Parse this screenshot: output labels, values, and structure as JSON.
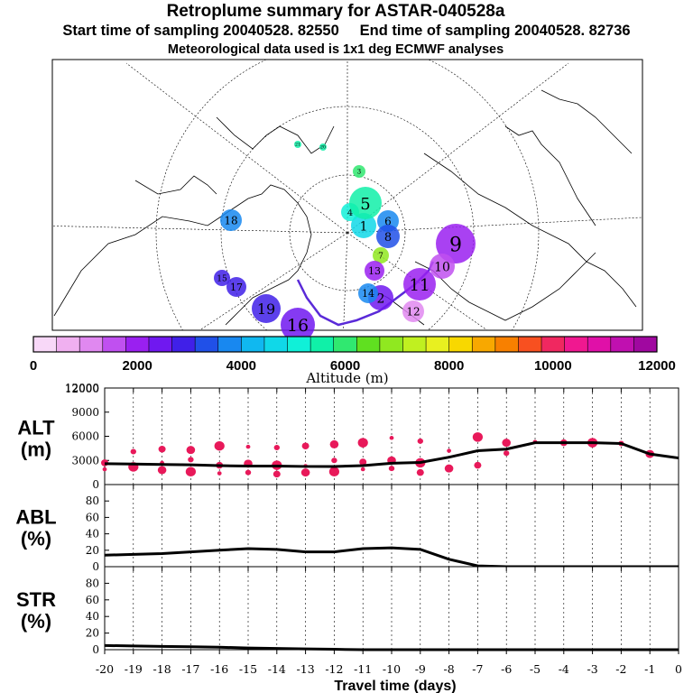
{
  "header": {
    "title": "Retroplume summary for ASTAR-040528a",
    "sampling_line": "Start time of sampling 20040528. 82550     End time of sampling 20040528. 82736",
    "met_line": "Meteorological data used is 1x1 deg ECMWF analyses"
  },
  "colors": {
    "cluster_circles": "#e8195a",
    "path_line": "#000000",
    "track": "#5a2ad8",
    "map_lines": "#000000"
  },
  "colorbar": {
    "label": "Altitude (m)",
    "ticks": [
      "0",
      "2000",
      "4000",
      "6000",
      "8000",
      "10000",
      "12000"
    ],
    "tick_values": [
      0,
      2000,
      4000,
      6000,
      8000,
      10000,
      12000
    ],
    "colors": [
      "#f8d8f8",
      "#f0b0f0",
      "#e088f0",
      "#c050f0",
      "#9a20f0",
      "#7018f0",
      "#4020e8",
      "#2050e8",
      "#1888f0",
      "#10b8f0",
      "#10d8e8",
      "#10f0d8",
      "#10f0a8",
      "#30e870",
      "#60e020",
      "#90e820",
      "#c0f020",
      "#e8f020",
      "#f8d800",
      "#f8a800",
      "#f88000",
      "#f85020",
      "#f02860",
      "#f01890",
      "#e010a8",
      "#c010b0",
      "#a008a0"
    ]
  },
  "map_markers": [
    {
      "label": "1",
      "color": "#10d8e8",
      "r": 14
    },
    {
      "label": "2",
      "color": "#7018f0",
      "r": 14
    },
    {
      "label": "3",
      "color": "#30e870",
      "r": 7
    },
    {
      "label": "4",
      "color": "#10f0d8",
      "r": 10
    },
    {
      "label": "5",
      "color": "#10f0a8",
      "r": 18
    },
    {
      "label": "6",
      "color": "#1888f0",
      "r": 12
    },
    {
      "label": "7",
      "color": "#90e820",
      "r": 9
    },
    {
      "label": "8",
      "color": "#2050e8",
      "r": 13
    },
    {
      "label": "9",
      "color": "#9a20f0",
      "r": 22
    },
    {
      "label": "10",
      "color": "#c050f0",
      "r": 14
    },
    {
      "label": "11",
      "color": "#9a20f0",
      "r": 18
    },
    {
      "label": "12",
      "color": "#e088f0",
      "r": 12
    },
    {
      "label": "13",
      "color": "#9a20f0",
      "r": 11
    },
    {
      "label": "14",
      "color": "#1888f0",
      "r": 11
    },
    {
      "label": "15",
      "color": "#4020e8",
      "r": 9
    },
    {
      "label": "16",
      "color": "#7018f0",
      "r": 19
    },
    {
      "label": "17",
      "color": "#4020e8",
      "r": 11
    },
    {
      "label": "18",
      "color": "#1888f0",
      "r": 12
    },
    {
      "label": "19",
      "color": "#4020e8",
      "r": 16
    },
    {
      "label": "20",
      "color": "#10f0a8",
      "r": 4
    },
    {
      "label": "21",
      "color": "#10f0a8",
      "r": 4
    }
  ],
  "chart_data": [
    {
      "type": "scatter",
      "panel": "ALT",
      "ylabel": "ALT",
      "yunit": "(m)",
      "xlim": [
        -20,
        0
      ],
      "ylim": [
        0,
        12000
      ],
      "yticks": [
        0,
        3000,
        6000,
        9000,
        12000
      ],
      "mean_line": {
        "x": [
          -20,
          -19,
          -18,
          -17,
          -16,
          -15,
          -14,
          -13,
          -12,
          -11,
          -10,
          -9,
          -8,
          -7,
          -6,
          -5,
          -4,
          -3,
          -2,
          -1,
          0
        ],
        "y": [
          2600,
          2550,
          2500,
          2450,
          2350,
          2300,
          2300,
          2250,
          2250,
          2350,
          2650,
          2750,
          3400,
          4200,
          4400,
          5200,
          5200,
          5200,
          5100,
          3800,
          3300
        ]
      },
      "cluster_points": [
        {
          "x": -20,
          "y": 1900
        },
        {
          "x": -20,
          "y": 2700
        },
        {
          "x": -19,
          "y": 2200
        },
        {
          "x": -19,
          "y": 4100
        },
        {
          "x": -18,
          "y": 1800
        },
        {
          "x": -18,
          "y": 2700
        },
        {
          "x": -18,
          "y": 4400
        },
        {
          "x": -17,
          "y": 1600
        },
        {
          "x": -17,
          "y": 3100
        },
        {
          "x": -17,
          "y": 4300
        },
        {
          "x": -16,
          "y": 1400
        },
        {
          "x": -16,
          "y": 2400
        },
        {
          "x": -16,
          "y": 4800
        },
        {
          "x": -15,
          "y": 1500
        },
        {
          "x": -15,
          "y": 2600
        },
        {
          "x": -15,
          "y": 4700
        },
        {
          "x": -14,
          "y": 1300
        },
        {
          "x": -14,
          "y": 2400
        },
        {
          "x": -14,
          "y": 4600
        },
        {
          "x": -13,
          "y": 1500
        },
        {
          "x": -13,
          "y": 2300
        },
        {
          "x": -13,
          "y": 4800
        },
        {
          "x": -12,
          "y": 1600
        },
        {
          "x": -12,
          "y": 3000
        },
        {
          "x": -12,
          "y": 5000
        },
        {
          "x": -11,
          "y": 1900
        },
        {
          "x": -11,
          "y": 2800
        },
        {
          "x": -11,
          "y": 5200
        },
        {
          "x": -10,
          "y": 2000
        },
        {
          "x": -10,
          "y": 3000
        },
        {
          "x": -10,
          "y": 5800
        },
        {
          "x": -9,
          "y": 1500
        },
        {
          "x": -9,
          "y": 2700
        },
        {
          "x": -9,
          "y": 5400
        },
        {
          "x": -8,
          "y": 2000
        },
        {
          "x": -8,
          "y": 4200
        },
        {
          "x": -7,
          "y": 2400
        },
        {
          "x": -7,
          "y": 5900
        },
        {
          "x": -6,
          "y": 3900
        },
        {
          "x": -6,
          "y": 5200
        },
        {
          "x": -5,
          "y": 5300
        },
        {
          "x": -4,
          "y": 5200
        },
        {
          "x": -3,
          "y": 5200
        },
        {
          "x": -2,
          "y": 5100
        },
        {
          "x": -1,
          "y": 3800
        }
      ]
    },
    {
      "type": "line",
      "panel": "ABL",
      "ylabel": "ABL",
      "yunit": "(%)",
      "xlim": [
        -20,
        0
      ],
      "ylim": [
        0,
        100
      ],
      "yticks": [
        0,
        20,
        40,
        60,
        80
      ],
      "x": [
        -20,
        -19,
        -18,
        -17,
        -16,
        -15,
        -14,
        -13,
        -12,
        -11,
        -10,
        -9,
        -8,
        -7,
        -6,
        -5,
        -4,
        -3,
        -2,
        -1,
        0
      ],
      "y": [
        14,
        15,
        16,
        18,
        20,
        22,
        21,
        18,
        18,
        22,
        23,
        21,
        9,
        1,
        0,
        0,
        0,
        0,
        0,
        0,
        0
      ]
    },
    {
      "type": "line",
      "panel": "STR",
      "ylabel": "STR",
      "yunit": "(%)",
      "xlim": [
        -20,
        0
      ],
      "ylim": [
        0,
        100
      ],
      "yticks": [
        0,
        20,
        40,
        60,
        80
      ],
      "x": [
        -20,
        -19,
        -18,
        -17,
        -16,
        -15,
        -14,
        -13,
        -12,
        -11,
        -10,
        -9,
        -8,
        -7,
        -6,
        -5,
        -4,
        -3,
        -2,
        -1,
        0
      ],
      "y": [
        5,
        4.5,
        4,
        3.5,
        3,
        2,
        1.5,
        1,
        0.5,
        0,
        0,
        0,
        0,
        0,
        0,
        0,
        0,
        0,
        0,
        0,
        0
      ]
    }
  ],
  "xaxis": {
    "label": "Travel time (days)",
    "ticks": [
      "-20",
      "-19",
      "-18",
      "-17",
      "-16",
      "-15",
      "-14",
      "-13",
      "-12",
      "-11",
      "-10",
      "-9",
      "-8",
      "-7",
      "-6",
      "-5",
      "-4",
      "-3",
      "-2",
      "-1",
      "0"
    ]
  }
}
